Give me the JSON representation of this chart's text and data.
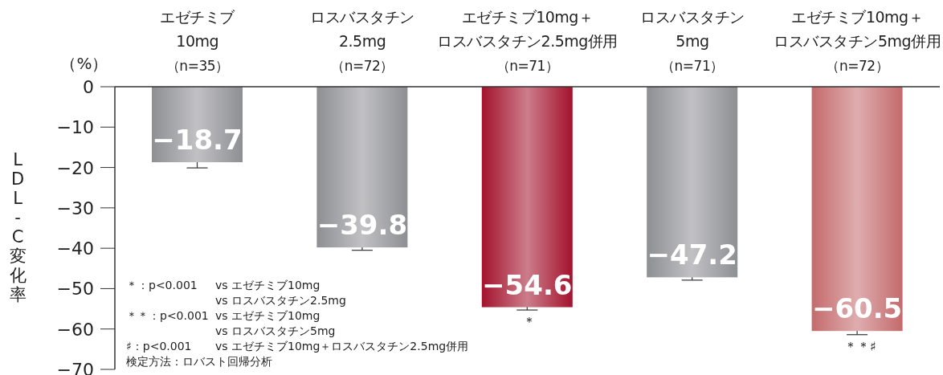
{
  "chart_data": {
    "type": "bar",
    "categories": [
      "エゼチミブ\n10mg\n（n=35）",
      "ロスバスタチン\n2.5mg\n（n=72）",
      "エゼチミブ10mg＋ロスバスタチン2.5mg併用（n=71）",
      "ロスバスタチン\n5mg\n（n=71）",
      "エゼチミブ10mg＋ロスバスタチン5mg併用（n=72）"
    ],
    "values": [
      -18.7,
      -39.8,
      -54.6,
      -47.2,
      -60.5
    ],
    "colors": [
      "#8e8f93",
      "#8e8f93",
      "#a3122c",
      "#8e8f93",
      "#c46a6c"
    ],
    "value_labels": [
      "−18.7",
      "−39.8",
      "−54.6",
      "−47.2",
      "−60.5"
    ],
    "errors": [
      1.4,
      0.7,
      0.7,
      0.7,
      0.9
    ],
    "ylabel": "LDL-C変化率",
    "ylim": [
      -70,
      0
    ],
    "yticks": [
      {
        "value": 0,
        "label": "0"
      },
      {
        "value": -10,
        "label": "−10"
      },
      {
        "value": -20,
        "label": "−20"
      },
      {
        "value": -30,
        "label": "−30"
      },
      {
        "value": -40,
        "label": "−40"
      },
      {
        "value": -50,
        "label": "−50"
      },
      {
        "value": -60,
        "label": "−60"
      },
      {
        "value": -70,
        "label": "−70"
      }
    ],
    "annotations": [
      "（%）",
      {
        "text": "＊",
        "x": "エゼチミブ10mg＋ロスバスタチン2.5mg併用（n=71）",
        "y": -54.6
      },
      {
        "text": "＊＊♯",
        "x": "エゼチミブ10mg＋ロスバスタチン5mg併用（n=72）",
        "y": -60.5
      },
      "＊：p<0.001\tvs エゼチミブ10mg",
      "\tvs ロスバスタチン2.5mg",
      "＊＊：p<0.001\tvs エゼチミブ10mg",
      "\tvs ロスバスタチン5mg",
      "♯：p<0.001\tvs エゼチミブ10mg＋ロスバスタチン2.5mg併用",
      "検定方法：ロバスト回帰分析"
    ],
    "grid": false,
    "legend": false
  }
}
